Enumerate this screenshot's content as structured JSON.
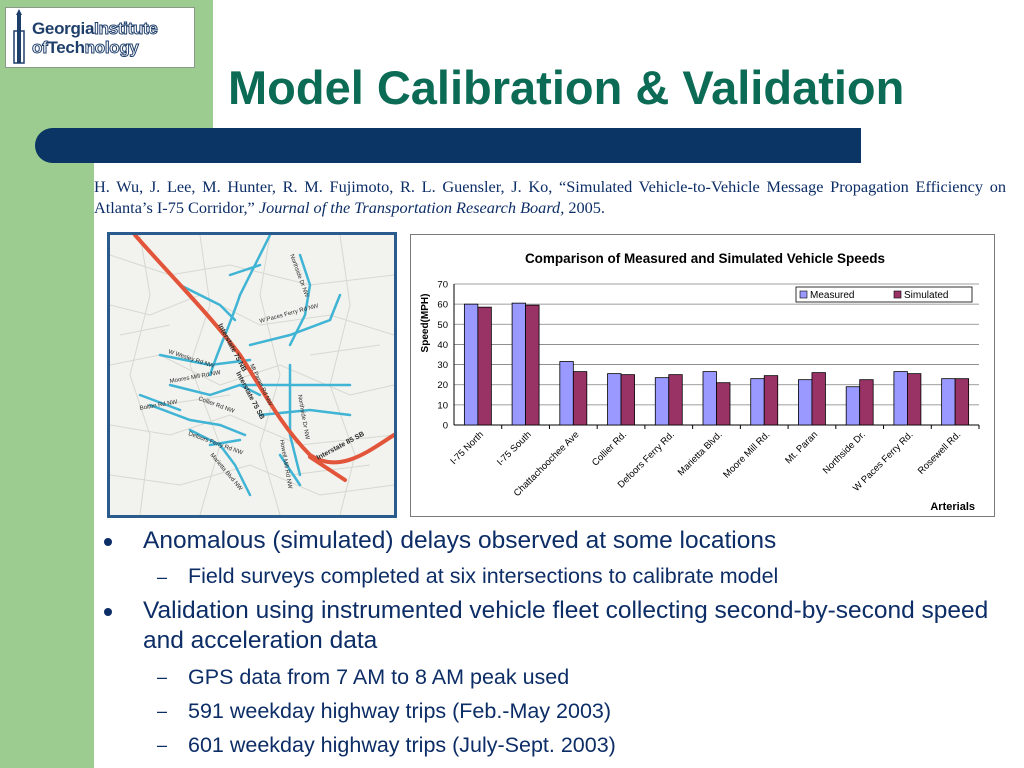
{
  "logo": {
    "line1_dark": "Georgia",
    "line1_light": "Institute",
    "line2_dark": "of",
    "line2_tech": "Tech",
    "line2_light": "nology"
  },
  "title": "Model Calibration & Validation",
  "citation": {
    "authors_title": "H. Wu, J. Lee, M. Hunter, R. M. Fujimoto, R. L. Guensler, J. Ko, “Simulated Vehicle-to-Vehicle Message Propagation Efficiency on Atlanta’s I-75 Corridor,” ",
    "journal": "Journal of the Transportation Research Board,",
    "year": " 2005."
  },
  "map_labels": {
    "i75_nb": "Interstate 75 NB",
    "i75_sb": "Interstate 75 SB",
    "i85_sb": "Interstate 85 SB",
    "northside": "Northside Dr NW",
    "w_paces": "W Paces Ferry Rd NW",
    "w_wesley": "W Wesley Rd NW",
    "moores_mill": "Moores Mill Rd NW",
    "collier": "Collier Rd NW",
    "defoors": "Defoors Ferry Rd NW",
    "howell_mill": "Howell Mill Rd NW",
    "bolton": "Bolton Rd NW",
    "mt_paran": "Mt Paran Rd NW",
    "marietta": "Marietta Blvd NW",
    "northside2": "Northside Dr NW"
  },
  "chart_data": {
    "type": "bar",
    "title": "Comparison of Measured and Simulated Vehicle Speeds",
    "xlabel": "Arterials",
    "ylabel": "Speed(MPH)",
    "ylim": [
      0,
      70
    ],
    "yticks": [
      "0",
      "10",
      "20",
      "30",
      "40",
      "50",
      "60",
      "70"
    ],
    "grid": true,
    "legend_position": "top-right",
    "categories": [
      "I-75 North",
      "I-75 South",
      "Chattachoochee Ave",
      "Collier Rd.",
      "Defoors Ferry Rd.",
      "Marietta Blvd.",
      "Moore Mill Rd.",
      "Mt. Paran",
      "Northside Dr.",
      "W Paces Ferry Rd.",
      "Rosewell Rd."
    ],
    "series": [
      {
        "name": "Measured",
        "color": "#9999ff",
        "values": [
          60,
          60.5,
          31.5,
          25.5,
          23.5,
          26.5,
          23,
          22.5,
          19,
          26.5,
          23
        ]
      },
      {
        "name": "Simulated",
        "color": "#993366",
        "values": [
          58.5,
          59.5,
          26.5,
          25,
          25,
          21,
          24.5,
          26,
          22.5,
          25.5,
          23
        ]
      }
    ]
  },
  "bullets": [
    {
      "level": 1,
      "text": "Anomalous (simulated) delays observed at some locations"
    },
    {
      "level": 2,
      "text": "Field surveys completed at six intersections to calibrate model"
    },
    {
      "level": 1,
      "text": "Validation using instrumented vehicle fleet collecting second-by-second speed and acceleration data"
    },
    {
      "level": 2,
      "text": "GPS data from 7 AM to 8 AM peak used"
    },
    {
      "level": 2,
      "text": "591 weekday highway trips (Feb.-May 2003)"
    },
    {
      "level": 2,
      "text": "601 weekday highway trips (July-Sept. 2003)"
    }
  ],
  "colors": {
    "title": "#0c6b55",
    "bar": "#0a3564",
    "text": "#0c2d66",
    "band": "#9ccc8f",
    "highway": "#e2553a",
    "arterial": "#3fb4d4"
  }
}
